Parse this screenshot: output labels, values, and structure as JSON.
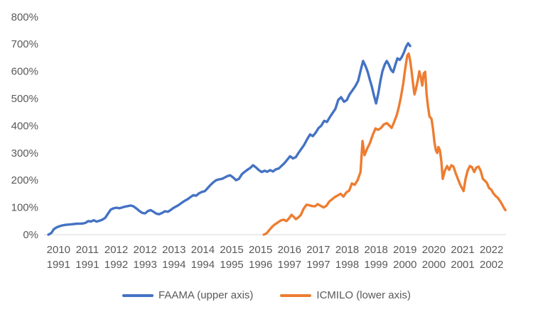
{
  "chart_data": {
    "type": "line",
    "title": "",
    "y_axis": {
      "unit": "%",
      "min": 0,
      "max": 800,
      "step": 100,
      "tick_labels": [
        "800%",
        "700%",
        "600%",
        "500%",
        "400%",
        "300%",
        "200%",
        "100%",
        "0%"
      ]
    },
    "x_axis": {
      "note": "dual time axis: each tick position shows the upper-axis year (FAAMA, 2010-2022) above the lower-axis year (ICMILO, 1991-2002)",
      "upper_labels": [
        "2010",
        "2011",
        "2012",
        "2012",
        "2013",
        "2014",
        "2015",
        "2015",
        "2016",
        "2017",
        "2018",
        "2018",
        "2019",
        "2020",
        "2021",
        "2022"
      ],
      "lower_labels": [
        "1991",
        "1991",
        "1992",
        "1993",
        "1994",
        "1994",
        "1995",
        "1996",
        "1997",
        "1997",
        "1998",
        "1999",
        "2000",
        "2000",
        "2001",
        "2002"
      ]
    },
    "legend": {
      "position": "bottom-center",
      "items": [
        {
          "label": "FAAMA (upper axis)",
          "color": "#4472C4"
        },
        {
          "label": "ICMILO (lower axis)",
          "color": "#ED7D31"
        }
      ]
    },
    "grid": "no gridlines; only 0% baseline axis line shown",
    "colors": {
      "faama_line": "#4472C4",
      "icmilo_line": "#ED7D31",
      "axis_text": "#595959",
      "axis_line": "#D9D9D9",
      "background": "#FFFFFF"
    },
    "x_unit": "axis slot position 0-16 (tick label i is centered at slot i+0.5)",
    "y_unit": "percent gain",
    "series": [
      {
        "name": "FAAMA (upper axis)",
        "color": "#4472C4",
        "points": [
          [
            0.15,
            0
          ],
          [
            0.25,
            6
          ],
          [
            0.34,
            20
          ],
          [
            0.44,
            27
          ],
          [
            0.54,
            31
          ],
          [
            0.64,
            34
          ],
          [
            0.74,
            36
          ],
          [
            0.84,
            37
          ],
          [
            0.94,
            38
          ],
          [
            1.04,
            39
          ],
          [
            1.13,
            40
          ],
          [
            1.23,
            40
          ],
          [
            1.33,
            41
          ],
          [
            1.43,
            43
          ],
          [
            1.53,
            50
          ],
          [
            1.62,
            48
          ],
          [
            1.72,
            53
          ],
          [
            1.82,
            48
          ],
          [
            1.92,
            51
          ],
          [
            2.02,
            55
          ],
          [
            2.12,
            62
          ],
          [
            2.22,
            78
          ],
          [
            2.31,
            92
          ],
          [
            2.41,
            97
          ],
          [
            2.51,
            99
          ],
          [
            2.61,
            97
          ],
          [
            2.71,
            100
          ],
          [
            2.81,
            103
          ],
          [
            2.91,
            105
          ],
          [
            3.0,
            107
          ],
          [
            3.1,
            104
          ],
          [
            3.2,
            96
          ],
          [
            3.3,
            87
          ],
          [
            3.4,
            80
          ],
          [
            3.5,
            78
          ],
          [
            3.6,
            87
          ],
          [
            3.69,
            90
          ],
          [
            3.79,
            84
          ],
          [
            3.89,
            77
          ],
          [
            3.99,
            75
          ],
          [
            4.09,
            80
          ],
          [
            4.19,
            86
          ],
          [
            4.29,
            84
          ],
          [
            4.38,
            90
          ],
          [
            4.48,
            98
          ],
          [
            4.58,
            104
          ],
          [
            4.68,
            110
          ],
          [
            4.78,
            118
          ],
          [
            4.88,
            125
          ],
          [
            4.97,
            130
          ],
          [
            5.07,
            138
          ],
          [
            5.17,
            145
          ],
          [
            5.27,
            143
          ],
          [
            5.37,
            152
          ],
          [
            5.47,
            157
          ],
          [
            5.57,
            160
          ],
          [
            5.66,
            170
          ],
          [
            5.76,
            182
          ],
          [
            5.86,
            192
          ],
          [
            5.96,
            200
          ],
          [
            6.06,
            203
          ],
          [
            6.16,
            205
          ],
          [
            6.26,
            210
          ],
          [
            6.35,
            215
          ],
          [
            6.45,
            218
          ],
          [
            6.55,
            210
          ],
          [
            6.65,
            200
          ],
          [
            6.75,
            205
          ],
          [
            6.85,
            222
          ],
          [
            6.94,
            230
          ],
          [
            7.04,
            238
          ],
          [
            7.14,
            245
          ],
          [
            7.24,
            255
          ],
          [
            7.34,
            247
          ],
          [
            7.44,
            237
          ],
          [
            7.54,
            230
          ],
          [
            7.64,
            235
          ],
          [
            7.73,
            231
          ],
          [
            7.83,
            237
          ],
          [
            7.93,
            232
          ],
          [
            8.03,
            240
          ],
          [
            8.13,
            243
          ],
          [
            8.22,
            252
          ],
          [
            8.32,
            262
          ],
          [
            8.42,
            275
          ],
          [
            8.52,
            288
          ],
          [
            8.62,
            280
          ],
          [
            8.72,
            285
          ],
          [
            8.81,
            300
          ],
          [
            8.91,
            315
          ],
          [
            9.01,
            330
          ],
          [
            9.11,
            350
          ],
          [
            9.21,
            368
          ],
          [
            9.31,
            362
          ],
          [
            9.41,
            375
          ],
          [
            9.51,
            392
          ],
          [
            9.6,
            400
          ],
          [
            9.7,
            418
          ],
          [
            9.8,
            414
          ],
          [
            9.9,
            432
          ],
          [
            10.0,
            448
          ],
          [
            10.09,
            462
          ],
          [
            10.19,
            495
          ],
          [
            10.29,
            505
          ],
          [
            10.39,
            488
          ],
          [
            10.49,
            495
          ],
          [
            10.58,
            515
          ],
          [
            10.68,
            530
          ],
          [
            10.78,
            545
          ],
          [
            10.88,
            565
          ],
          [
            10.98,
            610
          ],
          [
            11.05,
            638
          ],
          [
            11.13,
            620
          ],
          [
            11.21,
            598
          ],
          [
            11.28,
            570
          ],
          [
            11.35,
            545
          ],
          [
            11.43,
            510
          ],
          [
            11.5,
            482
          ],
          [
            11.58,
            520
          ],
          [
            11.65,
            565
          ],
          [
            11.72,
            600
          ],
          [
            11.8,
            625
          ],
          [
            11.87,
            638
          ],
          [
            11.94,
            625
          ],
          [
            12.02,
            605
          ],
          [
            12.09,
            597
          ],
          [
            12.17,
            625
          ],
          [
            12.24,
            648
          ],
          [
            12.32,
            642
          ],
          [
            12.39,
            652
          ],
          [
            12.46,
            668
          ],
          [
            12.54,
            690
          ],
          [
            12.61,
            703
          ],
          [
            12.68,
            693
          ]
        ]
      },
      {
        "name": "ICMILO (lower axis)",
        "color": "#ED7D31",
        "points": [
          [
            7.61,
            0
          ],
          [
            7.71,
            5
          ],
          [
            7.81,
            18
          ],
          [
            7.91,
            30
          ],
          [
            8.0,
            38
          ],
          [
            8.1,
            45
          ],
          [
            8.2,
            52
          ],
          [
            8.3,
            55
          ],
          [
            8.4,
            50
          ],
          [
            8.5,
            62
          ],
          [
            8.57,
            73
          ],
          [
            8.65,
            65
          ],
          [
            8.72,
            57
          ],
          [
            8.79,
            62
          ],
          [
            8.89,
            72
          ],
          [
            8.99,
            95
          ],
          [
            9.09,
            110
          ],
          [
            9.19,
            108
          ],
          [
            9.28,
            105
          ],
          [
            9.38,
            104
          ],
          [
            9.48,
            112
          ],
          [
            9.58,
            106
          ],
          [
            9.68,
            100
          ],
          [
            9.78,
            106
          ],
          [
            9.88,
            122
          ],
          [
            9.98,
            130
          ],
          [
            10.07,
            138
          ],
          [
            10.17,
            144
          ],
          [
            10.27,
            150
          ],
          [
            10.37,
            140
          ],
          [
            10.47,
            155
          ],
          [
            10.57,
            162
          ],
          [
            10.66,
            188
          ],
          [
            10.76,
            183
          ],
          [
            10.86,
            200
          ],
          [
            10.96,
            230
          ],
          [
            11.03,
            344
          ],
          [
            11.1,
            292
          ],
          [
            11.2,
            318
          ],
          [
            11.28,
            335
          ],
          [
            11.38,
            365
          ],
          [
            11.48,
            390
          ],
          [
            11.57,
            385
          ],
          [
            11.67,
            392
          ],
          [
            11.77,
            405
          ],
          [
            11.87,
            410
          ],
          [
            11.94,
            403
          ],
          [
            12.04,
            392
          ],
          [
            12.13,
            415
          ],
          [
            12.22,
            440
          ],
          [
            12.29,
            470
          ],
          [
            12.36,
            505
          ],
          [
            12.44,
            555
          ],
          [
            12.51,
            610
          ],
          [
            12.58,
            658
          ],
          [
            12.63,
            665
          ],
          [
            12.68,
            640
          ],
          [
            12.73,
            600
          ],
          [
            12.78,
            555
          ],
          [
            12.83,
            515
          ],
          [
            12.88,
            535
          ],
          [
            12.95,
            570
          ],
          [
            13.0,
            600
          ],
          [
            13.05,
            578
          ],
          [
            13.1,
            548
          ],
          [
            13.15,
            592
          ],
          [
            13.2,
            598
          ],
          [
            13.25,
            515
          ],
          [
            13.3,
            470
          ],
          [
            13.35,
            435
          ],
          [
            13.42,
            425
          ],
          [
            13.47,
            390
          ],
          [
            13.52,
            340
          ],
          [
            13.57,
            310
          ],
          [
            13.62,
            300
          ],
          [
            13.66,
            322
          ],
          [
            13.71,
            310
          ],
          [
            13.76,
            270
          ],
          [
            13.81,
            205
          ],
          [
            13.88,
            235
          ],
          [
            13.96,
            252
          ],
          [
            14.03,
            238
          ],
          [
            14.11,
            255
          ],
          [
            14.18,
            250
          ],
          [
            14.26,
            225
          ],
          [
            14.35,
            200
          ],
          [
            14.43,
            180
          ],
          [
            14.53,
            160
          ],
          [
            14.6,
            205
          ],
          [
            14.67,
            235
          ],
          [
            14.75,
            252
          ],
          [
            14.82,
            248
          ],
          [
            14.9,
            230
          ],
          [
            14.97,
            246
          ],
          [
            15.05,
            250
          ],
          [
            15.12,
            235
          ],
          [
            15.2,
            205
          ],
          [
            15.27,
            198
          ],
          [
            15.34,
            190
          ],
          [
            15.41,
            172
          ],
          [
            15.49,
            165
          ],
          [
            15.56,
            152
          ],
          [
            15.64,
            142
          ],
          [
            15.71,
            136
          ],
          [
            15.79,
            124
          ],
          [
            15.86,
            112
          ],
          [
            15.93,
            98
          ],
          [
            15.98,
            90
          ]
        ]
      }
    ]
  }
}
